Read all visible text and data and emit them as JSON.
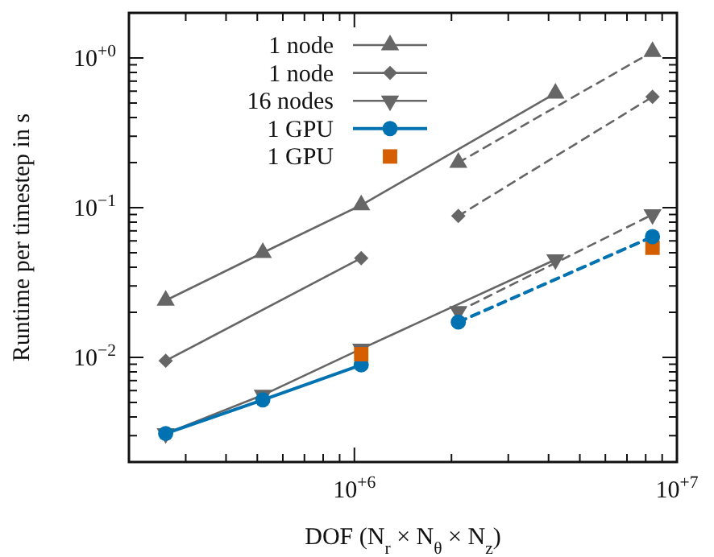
{
  "chart_data": {
    "type": "line",
    "xlabel": "DOF (N$_{r}$ × N$_{θ}$ × N$_{z}$)",
    "ylabel": "Runtime per timestep in s",
    "log": "xy",
    "legend": "top left",
    "grid": false,
    "xlim": [
      200000,
      10000000
    ],
    "xticks": [
      {
        "value": 200000,
        "label": null
      },
      {
        "value": 300000,
        "label": null
      },
      {
        "value": 400000,
        "label": null
      },
      {
        "value": 500000,
        "label": null
      },
      {
        "value": 600000,
        "label": null
      },
      {
        "value": 700000,
        "label": null
      },
      {
        "value": 800000,
        "label": null
      },
      {
        "value": 900000,
        "label": null
      },
      {
        "value": 1000000,
        "label": "10$^{+6}$"
      },
      {
        "value": 2000000,
        "label": null
      },
      {
        "value": 3000000,
        "label": null
      },
      {
        "value": 4000000,
        "label": null
      },
      {
        "value": 5000000,
        "label": null
      },
      {
        "value": 6000000,
        "label": null
      },
      {
        "value": 7000000,
        "label": null
      },
      {
        "value": 8000000,
        "label": null
      },
      {
        "value": 9000000,
        "label": null
      },
      {
        "value": 10000000,
        "label": "10$^{+7}$"
      }
    ],
    "ylim": [
      0.002,
      2
    ],
    "yticks": [
      {
        "value": 0.002,
        "label": null
      },
      {
        "value": 0.003,
        "label": null
      },
      {
        "value": 0.004,
        "label": null
      },
      {
        "value": 0.005,
        "label": null
      },
      {
        "value": 0.006,
        "label": null
      },
      {
        "value": 0.007,
        "label": null
      },
      {
        "value": 0.008,
        "label": null
      },
      {
        "value": 0.009,
        "label": null
      },
      {
        "value": 0.01,
        "label": "10$^{−2}$"
      },
      {
        "value": 0.02,
        "label": null
      },
      {
        "value": 0.03,
        "label": null
      },
      {
        "value": 0.04,
        "label": null
      },
      {
        "value": 0.05,
        "label": null
      },
      {
        "value": 0.06,
        "label": null
      },
      {
        "value": 0.07,
        "label": null
      },
      {
        "value": 0.08,
        "label": null
      },
      {
        "value": 0.09,
        "label": null
      },
      {
        "value": 0.1,
        "label": "10$^{−1}$"
      },
      {
        "value": 0.2,
        "label": null
      },
      {
        "value": 0.3,
        "label": null
      },
      {
        "value": 0.4,
        "label": null
      },
      {
        "value": 0.5,
        "label": null
      },
      {
        "value": 0.6,
        "label": null
      },
      {
        "value": 0.7,
        "label": null
      },
      {
        "value": 0.8,
        "label": null
      },
      {
        "value": 0.9,
        "label": null
      },
      {
        "value": 1,
        "label": "10$^{+0}$"
      },
      {
        "value": 2,
        "label": null
      }
    ],
    "series": [
      {
        "name": "1 node",
        "color": "#666666",
        "marker": "triangle",
        "line_style": "solid",
        "x": [
          260000,
          520000,
          1050000,
          4200000
        ],
        "values": [
          0.024,
          0.05,
          0.104,
          0.58
        ]
      },
      {
        "name": "1 node",
        "color": "#666666",
        "marker": "diamond",
        "line_style": "solid",
        "x": [
          260000,
          1050000
        ],
        "values": [
          0.0095,
          0.046
        ]
      },
      {
        "name": "16 nodes",
        "color": "#666666",
        "marker": "triangle-down",
        "line_style": "solid",
        "x": [
          260000,
          520000,
          1050000,
          4200000
        ],
        "values": [
          0.0031,
          0.0056,
          0.0114,
          0.045
        ]
      },
      {
        "name": "1 GPU",
        "color": "#0072b2",
        "marker": "circle",
        "line_style": "solid",
        "x": [
          260000,
          520000,
          1050000
        ],
        "values": [
          0.0031,
          0.0052,
          0.0089
        ]
      },
      {
        "name": "1 GPU",
        "type": "scatter",
        "color": "#d55e00",
        "marker": "square",
        "x": [
          1050000,
          8400000
        ],
        "values": [
          0.0105,
          0.054
        ]
      },
      {
        "color": "#666666",
        "marker": "triangle",
        "line_style": "dashed",
        "x": [
          2100000,
          8400000
        ],
        "values": [
          0.2,
          1.1
        ]
      },
      {
        "color": "#666666",
        "marker": "diamond",
        "line_style": "dashed",
        "x": [
          2100000,
          8400000
        ],
        "values": [
          0.088,
          0.55
        ]
      },
      {
        "color": "#666666",
        "marker": "triangle-down",
        "line_style": "dashed",
        "x": [
          2100000,
          8400000
        ],
        "values": [
          0.0203,
          0.09
        ]
      },
      {
        "color": "#0072b2",
        "marker": "circle",
        "line_style": "dashed",
        "x": [
          2100000,
          8400000
        ],
        "values": [
          0.0172,
          0.064
        ]
      }
    ]
  }
}
